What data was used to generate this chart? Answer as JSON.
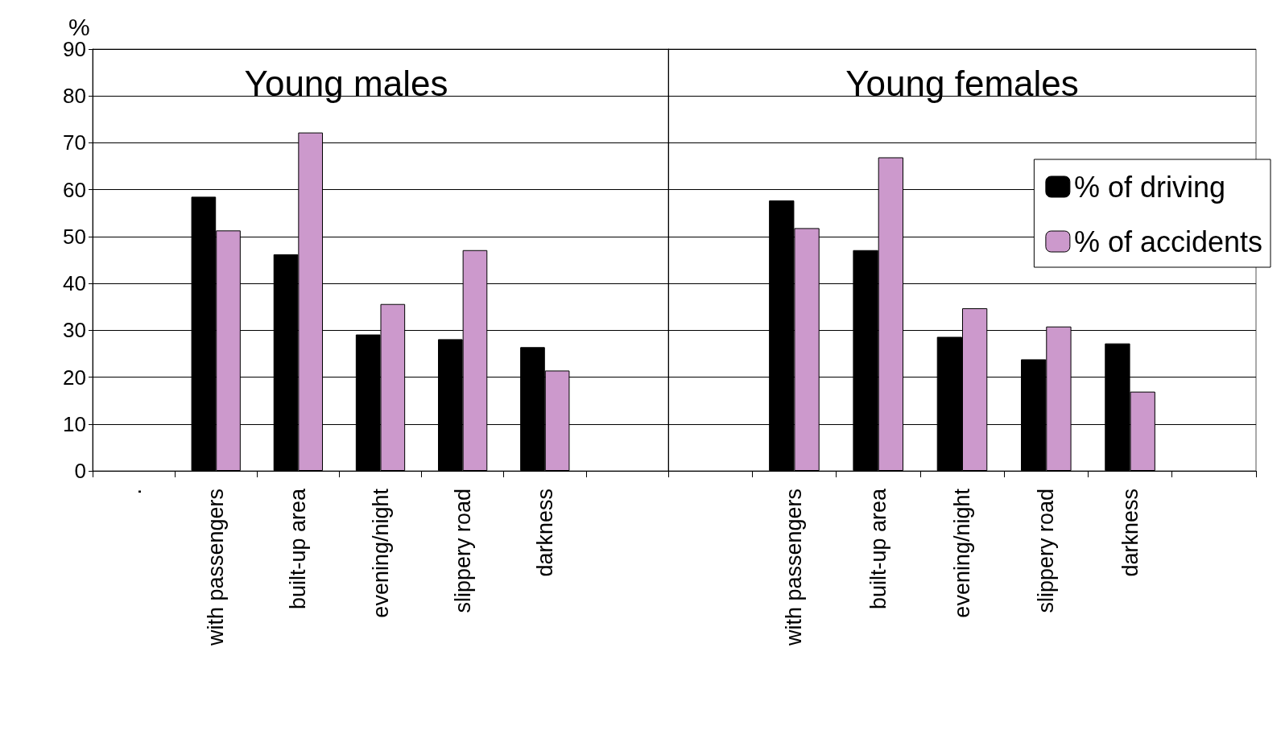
{
  "chart_data": [
    {
      "type": "bar",
      "title": "Young males",
      "ylabel": "%",
      "categories": [
        ".",
        "with passengers",
        "built-up area",
        "evening/night",
        "slippery road",
        "darkness",
        null
      ],
      "series": [
        {
          "color": "#000000",
          "values": [
            null,
            58.5,
            46.2,
            29.1,
            28.1,
            26.4,
            null
          ]
        },
        {
          "color": "#cc99cc",
          "values": [
            null,
            51.3,
            72.2,
            35.6,
            47.1,
            21.4,
            null
          ]
        }
      ],
      "ylim": [
        0,
        90
      ],
      "yticks": [
        0,
        10,
        20,
        30,
        40,
        50,
        60,
        70,
        80,
        90
      ],
      "grid": "y",
      "legend": false
    },
    {
      "type": "bar",
      "title": "Young females",
      "categories": [
        null,
        "with passengers",
        "built-up area",
        "evening/night",
        "slippery road",
        "darkness",
        null
      ],
      "series": [
        {
          "name": "% of driving",
          "color": "#000000",
          "values": [
            null,
            57.7,
            47.1,
            28.6,
            23.8,
            27.2,
            null
          ]
        },
        {
          "name": "% of accidents",
          "color": "#cc99cc",
          "values": [
            null,
            51.8,
            66.9,
            34.7,
            30.8,
            16.9,
            null
          ]
        }
      ],
      "ylim": [
        0,
        90
      ],
      "yticks": [
        0,
        10,
        20,
        30,
        40,
        50,
        60,
        70,
        80,
        90
      ],
      "grid": "y",
      "legend": "top right",
      "tick_labels": "x"
    }
  ]
}
